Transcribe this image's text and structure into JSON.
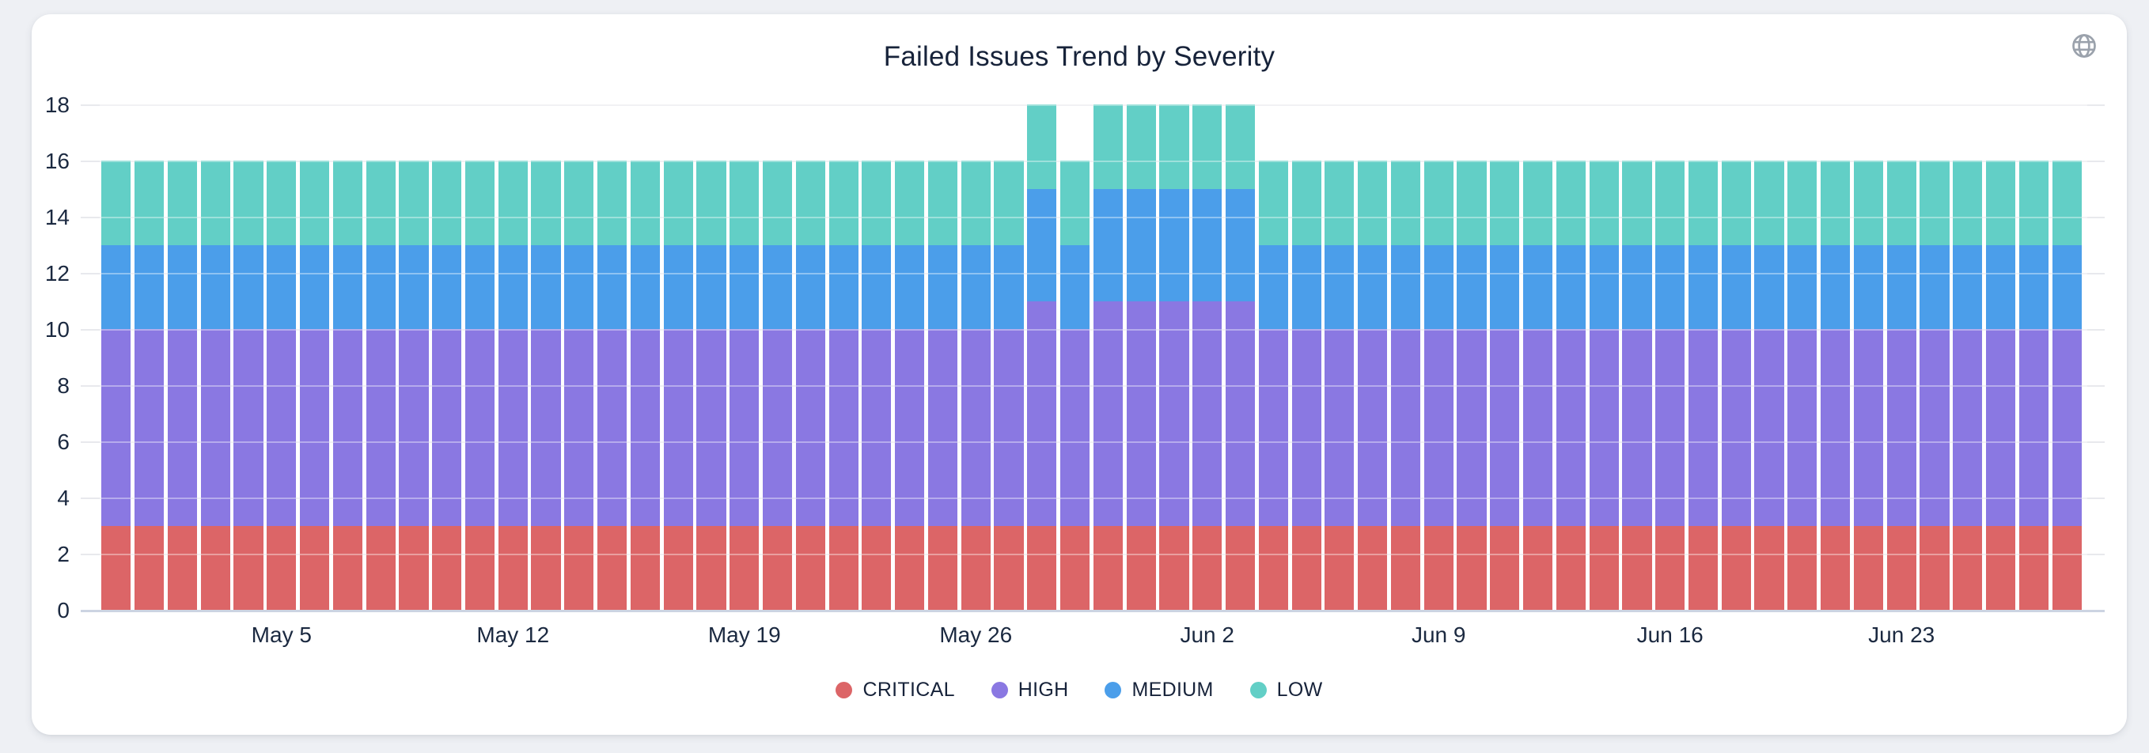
{
  "header": {
    "title": "Failed Issues Trend by Severity",
    "icon": "globe-icon"
  },
  "colors": {
    "background": "#eef0f4",
    "card": "#ffffff",
    "tick_text": "#1b2940",
    "title_text": "#17233a",
    "gridline": "#e8e9ed",
    "axis_line": "#ccd4e2",
    "icon": "#9ba2ac"
  },
  "chart_data": {
    "type": "bar",
    "stacked": true,
    "title": "Failed Issues Trend by Severity",
    "xlabel": "",
    "ylabel": "",
    "ylim": [
      0,
      18
    ],
    "y_ticks": [
      0,
      2,
      4,
      6,
      8,
      10,
      12,
      14,
      16,
      18
    ],
    "grid": true,
    "legend_position": "bottom",
    "categories": [
      "Apr 30",
      "May 1",
      "May 2",
      "May 3",
      "May 4",
      "May 5",
      "May 6",
      "May 7",
      "May 8",
      "May 9",
      "May 10",
      "May 11",
      "May 12",
      "May 13",
      "May 14",
      "May 15",
      "May 16",
      "May 17",
      "May 18",
      "May 19",
      "May 20",
      "May 21",
      "May 22",
      "May 23",
      "May 24",
      "May 25",
      "May 26",
      "May 27",
      "May 28",
      "May 29",
      "May 30",
      "May 31",
      "Jun 1",
      "Jun 2",
      "Jun 3",
      "Jun 4",
      "Jun 5",
      "Jun 6",
      "Jun 7",
      "Jun 8",
      "Jun 9",
      "Jun 10",
      "Jun 11",
      "Jun 12",
      "Jun 13",
      "Jun 14",
      "Jun 15",
      "Jun 16",
      "Jun 17",
      "Jun 18",
      "Jun 19",
      "Jun 20",
      "Jun 21",
      "Jun 22",
      "Jun 23",
      "Jun 24",
      "Jun 25",
      "Jun 26",
      "Jun 27",
      "Jun 28"
    ],
    "x_tick_indices": [
      5,
      12,
      19,
      26,
      33,
      40,
      47,
      54
    ],
    "x_tick_labels": [
      "May 5",
      "May 12",
      "May 19",
      "May 26",
      "Jun 2",
      "Jun 9",
      "Jun 16",
      "Jun 23"
    ],
    "series": [
      {
        "name": "CRITICAL",
        "color": "#dc6567",
        "values": [
          3,
          3,
          3,
          3,
          3,
          3,
          3,
          3,
          3,
          3,
          3,
          3,
          3,
          3,
          3,
          3,
          3,
          3,
          3,
          3,
          3,
          3,
          3,
          3,
          3,
          3,
          3,
          3,
          3,
          3,
          3,
          3,
          3,
          3,
          3,
          3,
          3,
          3,
          3,
          3,
          3,
          3,
          3,
          3,
          3,
          3,
          3,
          3,
          3,
          3,
          3,
          3,
          3,
          3,
          3,
          3,
          3,
          3,
          3,
          3
        ]
      },
      {
        "name": "HIGH",
        "color": "#8a78e2",
        "values": [
          7,
          7,
          7,
          7,
          7,
          7,
          7,
          7,
          7,
          7,
          7,
          7,
          7,
          7,
          7,
          7,
          7,
          7,
          7,
          7,
          7,
          7,
          7,
          7,
          7,
          7,
          7,
          7,
          8,
          7,
          8,
          8,
          8,
          8,
          8,
          7,
          7,
          7,
          7,
          7,
          7,
          7,
          7,
          7,
          7,
          7,
          7,
          7,
          7,
          7,
          7,
          7,
          7,
          7,
          7,
          7,
          7,
          7,
          7,
          7
        ]
      },
      {
        "name": "MEDIUM",
        "color": "#4b9eea",
        "values": [
          3,
          3,
          3,
          3,
          3,
          3,
          3,
          3,
          3,
          3,
          3,
          3,
          3,
          3,
          3,
          3,
          3,
          3,
          3,
          3,
          3,
          3,
          3,
          3,
          3,
          3,
          3,
          3,
          4,
          3,
          4,
          4,
          4,
          4,
          4,
          3,
          3,
          3,
          3,
          3,
          3,
          3,
          3,
          3,
          3,
          3,
          3,
          3,
          3,
          3,
          3,
          3,
          3,
          3,
          3,
          3,
          3,
          3,
          3,
          3
        ]
      },
      {
        "name": "LOW",
        "color": "#62cfc6",
        "values": [
          3,
          3,
          3,
          3,
          3,
          3,
          3,
          3,
          3,
          3,
          3,
          3,
          3,
          3,
          3,
          3,
          3,
          3,
          3,
          3,
          3,
          3,
          3,
          3,
          3,
          3,
          3,
          3,
          3,
          3,
          3,
          3,
          3,
          3,
          3,
          3,
          3,
          3,
          3,
          3,
          3,
          3,
          3,
          3,
          3,
          3,
          3,
          3,
          3,
          3,
          3,
          3,
          3,
          3,
          3,
          3,
          3,
          3,
          3,
          3
        ]
      }
    ]
  }
}
